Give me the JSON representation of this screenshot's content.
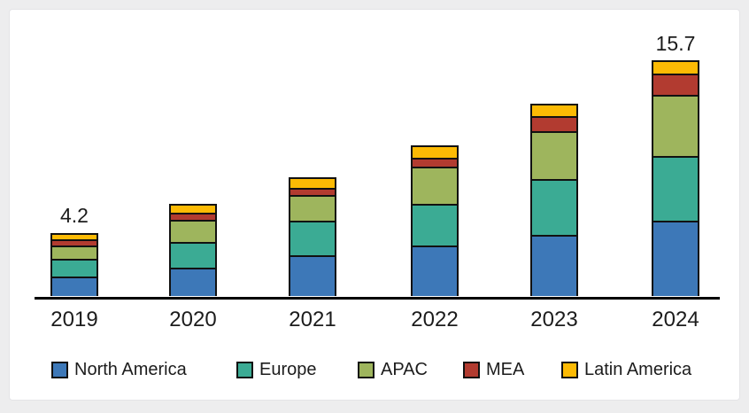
{
  "chart_data": {
    "type": "bar",
    "stacked": true,
    "title": "",
    "categories": [
      "2019",
      "2020",
      "2021",
      "2022",
      "2023",
      "2024"
    ],
    "series": [
      {
        "name": "North America",
        "color": "#3d78b8",
        "values": [
          1.3,
          1.9,
          2.7,
          3.4,
          4.1,
          5.0
        ]
      },
      {
        "name": "Europe",
        "color": "#3bab94",
        "values": [
          1.2,
          1.7,
          2.3,
          2.8,
          3.7,
          4.3
        ]
      },
      {
        "name": "APAC",
        "color": "#9eb55d",
        "values": [
          0.9,
          1.5,
          1.7,
          2.5,
          3.2,
          4.1
        ]
      },
      {
        "name": "MEA",
        "color": "#b23b30",
        "values": [
          0.4,
          0.5,
          0.5,
          0.6,
          1.0,
          1.4
        ]
      },
      {
        "name": "Latin America",
        "color": "#fcba04",
        "values": [
          0.4,
          0.6,
          0.7,
          0.8,
          0.8,
          0.9
        ]
      }
    ],
    "totals": [
      4.2,
      6.2,
      7.9,
      10.1,
      12.8,
      15.7
    ],
    "value_labels": [
      "4.2",
      "",
      "",
      "",
      "",
      "15.7"
    ],
    "legend": [
      "North America",
      "Europe",
      "APAC",
      "MEA",
      "Latin America"
    ],
    "legend_position": "bottom",
    "grid": false,
    "ylim": [
      0,
      16.5
    ],
    "axis_color": "#000000",
    "segment_border_color": "#111111",
    "label_color": "#1c1c1c",
    "background_color": "#ffffff",
    "page_background_color": "#ededee"
  }
}
